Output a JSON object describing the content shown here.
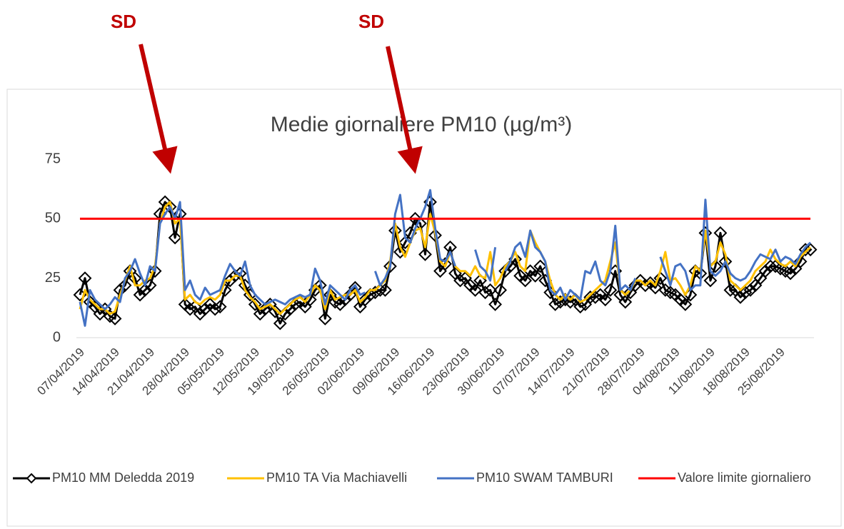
{
  "chart_data": {
    "type": "line",
    "title": "Medie giornaliere PM10 (µg/m³)",
    "annotations": [
      "SD",
      "SD"
    ],
    "categories": [
      "07/04/2019",
      null,
      null,
      null,
      null,
      null,
      null,
      "14/04/2019",
      null,
      null,
      null,
      null,
      null,
      null,
      "21/04/2019",
      null,
      null,
      null,
      null,
      null,
      null,
      "28/04/2019",
      null,
      null,
      null,
      null,
      null,
      null,
      "05/05/2019",
      null,
      null,
      null,
      null,
      null,
      null,
      "12/05/2019",
      null,
      null,
      null,
      null,
      null,
      null,
      "19/05/2019",
      null,
      null,
      null,
      null,
      null,
      null,
      "26/05/2019",
      null,
      null,
      null,
      null,
      null,
      null,
      "02/06/2019",
      null,
      null,
      null,
      null,
      null,
      null,
      "09/06/2019",
      null,
      null,
      null,
      null,
      null,
      null,
      "16/06/2019",
      null,
      null,
      null,
      null,
      null,
      null,
      "23/06/2019",
      null,
      null,
      null,
      null,
      null,
      null,
      "30/06/2019",
      null,
      null,
      null,
      null,
      null,
      null,
      "07/07/2019",
      null,
      null,
      null,
      null,
      null,
      null,
      "14/07/2019",
      null,
      null,
      null,
      null,
      null,
      null,
      "21/07/2019",
      null,
      null,
      null,
      null,
      null,
      null,
      "28/07/2019",
      null,
      null,
      null,
      null,
      null,
      null,
      "04/08/2019",
      null,
      null,
      null,
      null,
      null,
      null,
      "11/08/2019",
      null,
      null,
      null,
      null,
      null,
      null,
      "18/08/2019",
      null,
      null,
      null,
      null,
      null,
      null,
      "25/08/2019",
      null,
      null,
      null,
      null,
      null,
      null
    ],
    "series": [
      {
        "name": "PM10 MM Deledda 2019",
        "color": "#000000",
        "marker": "diamond",
        "values": [
          18,
          25,
          15,
          13,
          10,
          12,
          9,
          8,
          20,
          22,
          28,
          25,
          18,
          20,
          22,
          28,
          52,
          57,
          55,
          42,
          52,
          14,
          12,
          13,
          10,
          12,
          14,
          12,
          13,
          20,
          24,
          26,
          27,
          22,
          18,
          14,
          10,
          12,
          14,
          11,
          6,
          10,
          12,
          14,
          15,
          13,
          16,
          20,
          22,
          8,
          18,
          15,
          14,
          16,
          18,
          21,
          13,
          16,
          18,
          19,
          20,
          20,
          30,
          45,
          36,
          40,
          44,
          50,
          48,
          35,
          57,
          43,
          28,
          31,
          38,
          27,
          24,
          25,
          22,
          20,
          24,
          19,
          20,
          14,
          20,
          28,
          30,
          33,
          26,
          24,
          28,
          26,
          30,
          24,
          19,
          14,
          15,
          16,
          15,
          16,
          13,
          14,
          17,
          17,
          18,
          16,
          20,
          28,
          18,
          15,
          19,
          22,
          24,
          22,
          23,
          21,
          25,
          20,
          19,
          18,
          16,
          14,
          18,
          28,
          27,
          44,
          24,
          30,
          44,
          32,
          20,
          20,
          17,
          19,
          20,
          22,
          25,
          28,
          30,
          30,
          29,
          28,
          27,
          29,
          32,
          37,
          37
        ]
      },
      {
        "name": "PM10 TA Via Machiavelli",
        "color": "#FFC000",
        "values": [
          12,
          20,
          16,
          14,
          12,
          12,
          10,
          11,
          18,
          24,
          30,
          22,
          22,
          24,
          25,
          30,
          48,
          55,
          57,
          48,
          50,
          16,
          18,
          15,
          14,
          16,
          17,
          16,
          18,
          24,
          24,
          26,
          26,
          20,
          17,
          15,
          12,
          13,
          14,
          12,
          10,
          12,
          14,
          16,
          17,
          15,
          18,
          22,
          20,
          12,
          20,
          16,
          17,
          18,
          18,
          20,
          15,
          17,
          20,
          20,
          22,
          24,
          32,
          48,
          38,
          34,
          40,
          45,
          46,
          38,
          52,
          44,
          32,
          30,
          36,
          30,
          28,
          28,
          26,
          30,
          26,
          25,
          36,
          22,
          25,
          30,
          32,
          36,
          30,
          28,
          45,
          40,
          36,
          32,
          24,
          18,
          16,
          18,
          16,
          18,
          15,
          16,
          18,
          20,
          22,
          24,
          32,
          40,
          20,
          18,
          20,
          24,
          24,
          22,
          24,
          22,
          28,
          36,
          24,
          25,
          22,
          18,
          22,
          30,
          28,
          45,
          30,
          32,
          40,
          35,
          24,
          22,
          20,
          22,
          24,
          28,
          30,
          32,
          37,
          33,
          31,
          30,
          32,
          30,
          34,
          36,
          38
        ]
      },
      {
        "name": "PM10 SWAM TAMBURI",
        "color": "#4472C4",
        "values": [
          15,
          5,
          20,
          16,
          14,
          12,
          14,
          17,
          15,
          25,
          28,
          33,
          27,
          22,
          30,
          28,
          48,
          52,
          55,
          50,
          57,
          20,
          24,
          18,
          16,
          21,
          18,
          19,
          20,
          26,
          31,
          28,
          26,
          32,
          22,
          18,
          16,
          14,
          15,
          16,
          15,
          14,
          16,
          17,
          18,
          17,
          18,
          29,
          24,
          14,
          22,
          20,
          18,
          16,
          20,
          22,
          18,
          19,
          null,
          28,
          22,
          25,
          30,
          52,
          60,
          42,
          40,
          46,
          50,
          55,
          62,
          46,
          33,
          32,
          36,
          30,
          null,
          null,
          null,
          37,
          30,
          28,
          24,
          38,
          null,
          28,
          32,
          38,
          40,
          34,
          45,
          38,
          36,
          32,
          20,
          18,
          21,
          16,
          20,
          18,
          16,
          28,
          27,
          32,
          24,
          22,
          28,
          47,
          20,
          22,
          20,
          25,
          null,
          null,
          null,
          null,
          34,
          28,
          22,
          30,
          31,
          28,
          20,
          22,
          22,
          58,
          28,
          26,
          28,
          32,
          27,
          25,
          24,
          25,
          28,
          32,
          35,
          34,
          33,
          37,
          32,
          34,
          33,
          31,
          35,
          38,
          40
        ]
      },
      {
        "name": "Valore limite giornaliero",
        "color": "#FF0000",
        "value": 50
      }
    ],
    "ylim": [
      0,
      75
    ],
    "yticks": [
      0,
      25,
      50,
      75
    ],
    "grid": false
  }
}
